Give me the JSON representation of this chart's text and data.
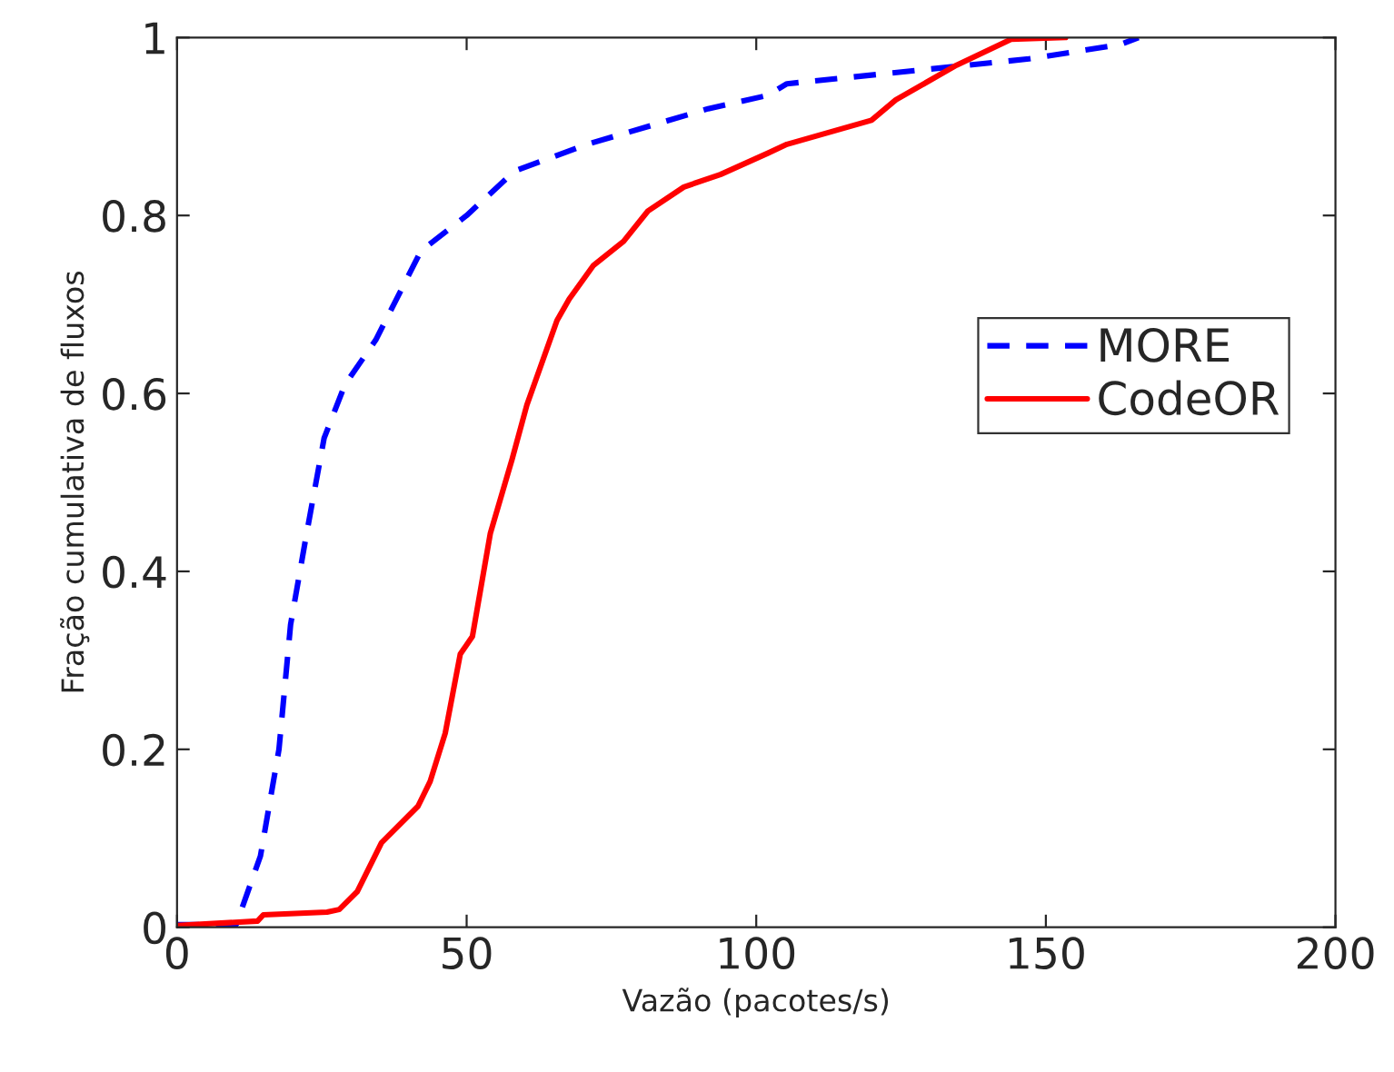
{
  "chart_data": {
    "type": "line",
    "xlabel": "Vazão (pacotes/s)",
    "ylabel": "Fração cumulativa de fluxos",
    "xlim": [
      0,
      200
    ],
    "ylim": [
      0,
      1
    ],
    "xticks": [
      0,
      50,
      100,
      150,
      200
    ],
    "yticks": [
      0,
      0.2,
      0.4,
      0.6,
      0.8,
      1
    ],
    "grid": false,
    "legend": "right",
    "series": [
      {
        "name": "MORE",
        "color": "#0000ff",
        "line_style": "dashed",
        "x": [
          0,
          10.2,
          14.4,
          17.6,
          19.6,
          22.3,
          25.4,
          29,
          34.3,
          42.1,
          50,
          58.3,
          70.8,
          81.3,
          91.7,
          102,
          105.3,
          126.2,
          147.1,
          162.8,
          166
        ],
        "values": [
          0.003,
          0.003,
          0.08,
          0.2,
          0.34,
          0.44,
          0.55,
          0.61,
          0.66,
          0.76,
          0.8,
          0.85,
          0.88,
          0.9,
          0.92,
          0.935,
          0.948,
          0.962,
          0.976,
          0.992,
          1.0
        ]
      },
      {
        "name": "CodeOR",
        "color": "#ff0000",
        "line_style": "solid",
        "x": [
          0,
          13.9,
          14.9,
          25.9,
          28,
          31.1,
          35.3,
          41.6,
          43.7,
          46.3,
          48.9,
          51,
          54.1,
          57.8,
          60.4,
          65.6,
          67.7,
          71.9,
          77.1,
          81.3,
          87.5,
          93.8,
          102,
          105.3,
          119.9,
          124.1,
          134.6,
          144,
          153.4
        ],
        "values": [
          0.002,
          0.007,
          0.014,
          0.017,
          0.02,
          0.04,
          0.095,
          0.136,
          0.164,
          0.218,
          0.307,
          0.327,
          0.443,
          0.525,
          0.587,
          0.682,
          0.706,
          0.744,
          0.771,
          0.805,
          0.832,
          0.846,
          0.87,
          0.88,
          0.907,
          0.93,
          0.969,
          0.998,
          1.0
        ]
      }
    ]
  }
}
